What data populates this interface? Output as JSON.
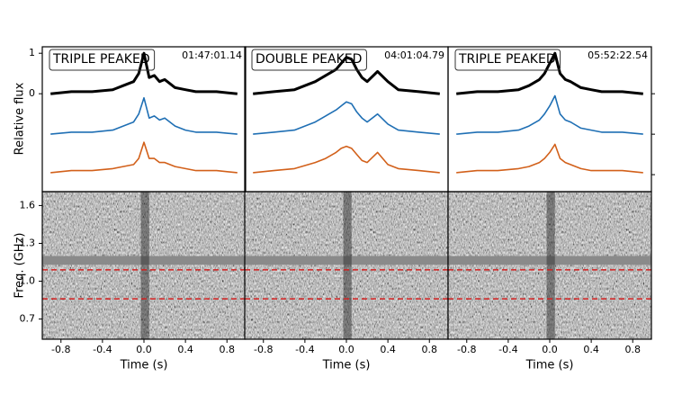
{
  "chart_data": [
    {
      "type": "line",
      "label": "TRIPLE PEAKED",
      "label_color": "#27c6cc",
      "timestamp": "01:47:01.14",
      "ylabel": "Relative flux",
      "ylim": [
        -2.42,
        1.16
      ],
      "yticks": [
        1,
        0
      ],
      "xlim": [
        -0.98,
        0.98
      ],
      "xticks": [
        -0.8,
        -0.4,
        {
          "value": 0,
          "label": "0.0"
        },
        0.4,
        0.8
      ],
      "xlabel": "Time (s)",
      "x": [
        -0.9,
        -0.7,
        -0.5,
        -0.3,
        -0.2,
        -0.1,
        -0.05,
        0,
        0.05,
        0.1,
        0.15,
        0.2,
        0.3,
        0.4,
        0.5,
        0.7,
        0.9
      ],
      "series": [
        {
          "color": "#000000",
          "values": [
            0,
            0.05,
            0.05,
            0.1,
            0.2,
            0.3,
            0.5,
            1.0,
            0.4,
            0.45,
            0.3,
            0.35,
            0.15,
            0.1,
            0.05,
            0.05,
            0
          ]
        },
        {
          "color": "#1f6fb4",
          "values": [
            -1.0,
            -0.95,
            -0.95,
            -0.9,
            -0.8,
            -0.7,
            -0.5,
            -0.1,
            -0.6,
            -0.55,
            -0.65,
            -0.6,
            -0.8,
            -0.9,
            -0.95,
            -0.95,
            -1.0
          ]
        },
        {
          "color": "#d2601a",
          "values": [
            -1.95,
            -1.9,
            -1.9,
            -1.85,
            -1.8,
            -1.75,
            -1.6,
            -1.2,
            -1.6,
            -1.6,
            -1.7,
            -1.7,
            -1.8,
            -1.85,
            -1.9,
            -1.9,
            -1.95
          ]
        }
      ],
      "spectrum": {
        "ylabel": "Freq. (GHz)",
        "ylim": [
          0.54,
          1.71
        ],
        "yticks": [
          {
            "value": 1.6,
            "label": "1.6"
          },
          {
            "value": 1.3,
            "label": "1.3"
          },
          {
            "value": 1,
            "label": "1.0"
          },
          {
            "value": 0.7,
            "label": "0.7"
          }
        ],
        "hlines": [
          1.09,
          0.86
        ],
        "hline_color": "#d42020"
      }
    },
    {
      "type": "line",
      "label": "DOUBLE PEAKED",
      "label_color": "#d18a1c",
      "timestamp": "04:01:04.79",
      "ylim": [
        -2.42,
        1.16
      ],
      "xlim": [
        -0.98,
        0.98
      ],
      "xticks": [
        -0.8,
        -0.4,
        {
          "value": 0,
          "label": "0.0"
        },
        0.4,
        0.8
      ],
      "xlabel": "Time (s)",
      "x": [
        -0.9,
        -0.7,
        -0.5,
        -0.3,
        -0.2,
        -0.1,
        -0.05,
        0,
        0.05,
        0.1,
        0.15,
        0.2,
        0.3,
        0.4,
        0.5,
        0.7,
        0.9
      ],
      "series": [
        {
          "color": "#000000",
          "values": [
            0,
            0.05,
            0.1,
            0.3,
            0.45,
            0.6,
            0.75,
            0.9,
            0.85,
            0.6,
            0.4,
            0.3,
            0.55,
            0.3,
            0.1,
            0.05,
            0
          ]
        },
        {
          "color": "#1f6fb4",
          "values": [
            -1.0,
            -0.95,
            -0.9,
            -0.7,
            -0.55,
            -0.4,
            -0.3,
            -0.2,
            -0.25,
            -0.45,
            -0.6,
            -0.7,
            -0.5,
            -0.75,
            -0.9,
            -0.95,
            -1.0
          ]
        },
        {
          "color": "#d2601a",
          "values": [
            -1.95,
            -1.9,
            -1.85,
            -1.7,
            -1.6,
            -1.45,
            -1.35,
            -1.3,
            -1.35,
            -1.5,
            -1.65,
            -1.7,
            -1.45,
            -1.75,
            -1.85,
            -1.9,
            -1.95
          ]
        }
      ],
      "spectrum": {
        "ylim": [
          0.54,
          1.71
        ],
        "hlines": [
          1.09,
          0.86
        ],
        "hline_color": "#d42020"
      }
    },
    {
      "type": "line",
      "label": "TRIPLE PEAKED",
      "label_color": "#27c6cc",
      "timestamp": "05:52:22.54",
      "ylim": [
        -2.42,
        1.16
      ],
      "right_ticks": [
        0,
        -1,
        -2
      ],
      "xlim": [
        -0.98,
        0.98
      ],
      "xticks": [
        -0.8,
        -0.4,
        {
          "value": 0,
          "label": "0.0"
        },
        0.4,
        0.8
      ],
      "xlabel": "Time (s)",
      "x": [
        -0.9,
        -0.7,
        -0.5,
        -0.3,
        -0.2,
        -0.1,
        -0.05,
        0,
        0.05,
        0.1,
        0.15,
        0.2,
        0.3,
        0.4,
        0.5,
        0.7,
        0.9
      ],
      "series": [
        {
          "color": "#000000",
          "values": [
            0,
            0.05,
            0.05,
            0.1,
            0.2,
            0.35,
            0.5,
            0.75,
            1.0,
            0.5,
            0.35,
            0.3,
            0.15,
            0.1,
            0.05,
            0.05,
            0
          ]
        },
        {
          "color": "#1f6fb4",
          "values": [
            -1.0,
            -0.95,
            -0.95,
            -0.9,
            -0.8,
            -0.65,
            -0.5,
            -0.3,
            -0.05,
            -0.5,
            -0.65,
            -0.7,
            -0.85,
            -0.9,
            -0.95,
            -0.95,
            -1.0
          ]
        },
        {
          "color": "#d2601a",
          "values": [
            -1.95,
            -1.9,
            -1.9,
            -1.85,
            -1.8,
            -1.7,
            -1.6,
            -1.45,
            -1.25,
            -1.6,
            -1.7,
            -1.75,
            -1.85,
            -1.9,
            -1.9,
            -1.9,
            -1.95
          ]
        }
      ],
      "spectrum": {
        "ylim": [
          0.54,
          1.71
        ],
        "hlines": [
          1.09,
          0.86
        ],
        "hline_color": "#d42020"
      }
    }
  ]
}
